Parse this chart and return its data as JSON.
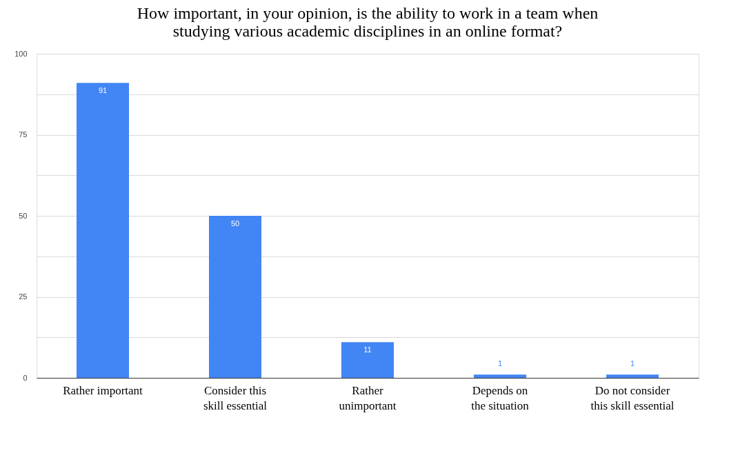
{
  "chart_data": {
    "type": "bar",
    "title": "How important, in your opinion, is the ability to work in a team when studying various academic disciplines in an online format?",
    "categories": [
      "Rather important",
      "Consider this skill essential",
      "Rather unimportant",
      "Depends on the situation",
      "Do not consider this skill essential"
    ],
    "values": [
      91,
      50,
      11,
      1,
      1
    ],
    "color": "#4285f4",
    "ylim": [
      0,
      100
    ],
    "yticks": [
      0,
      {
        "value": 12.5,
        "label": null
      },
      25,
      {
        "value": 37.5,
        "label": null
      },
      50,
      {
        "value": 62.5,
        "label": null
      },
      75,
      {
        "value": 87.5,
        "label": null
      },
      100
    ],
    "grid": true,
    "data_labels": true
  }
}
